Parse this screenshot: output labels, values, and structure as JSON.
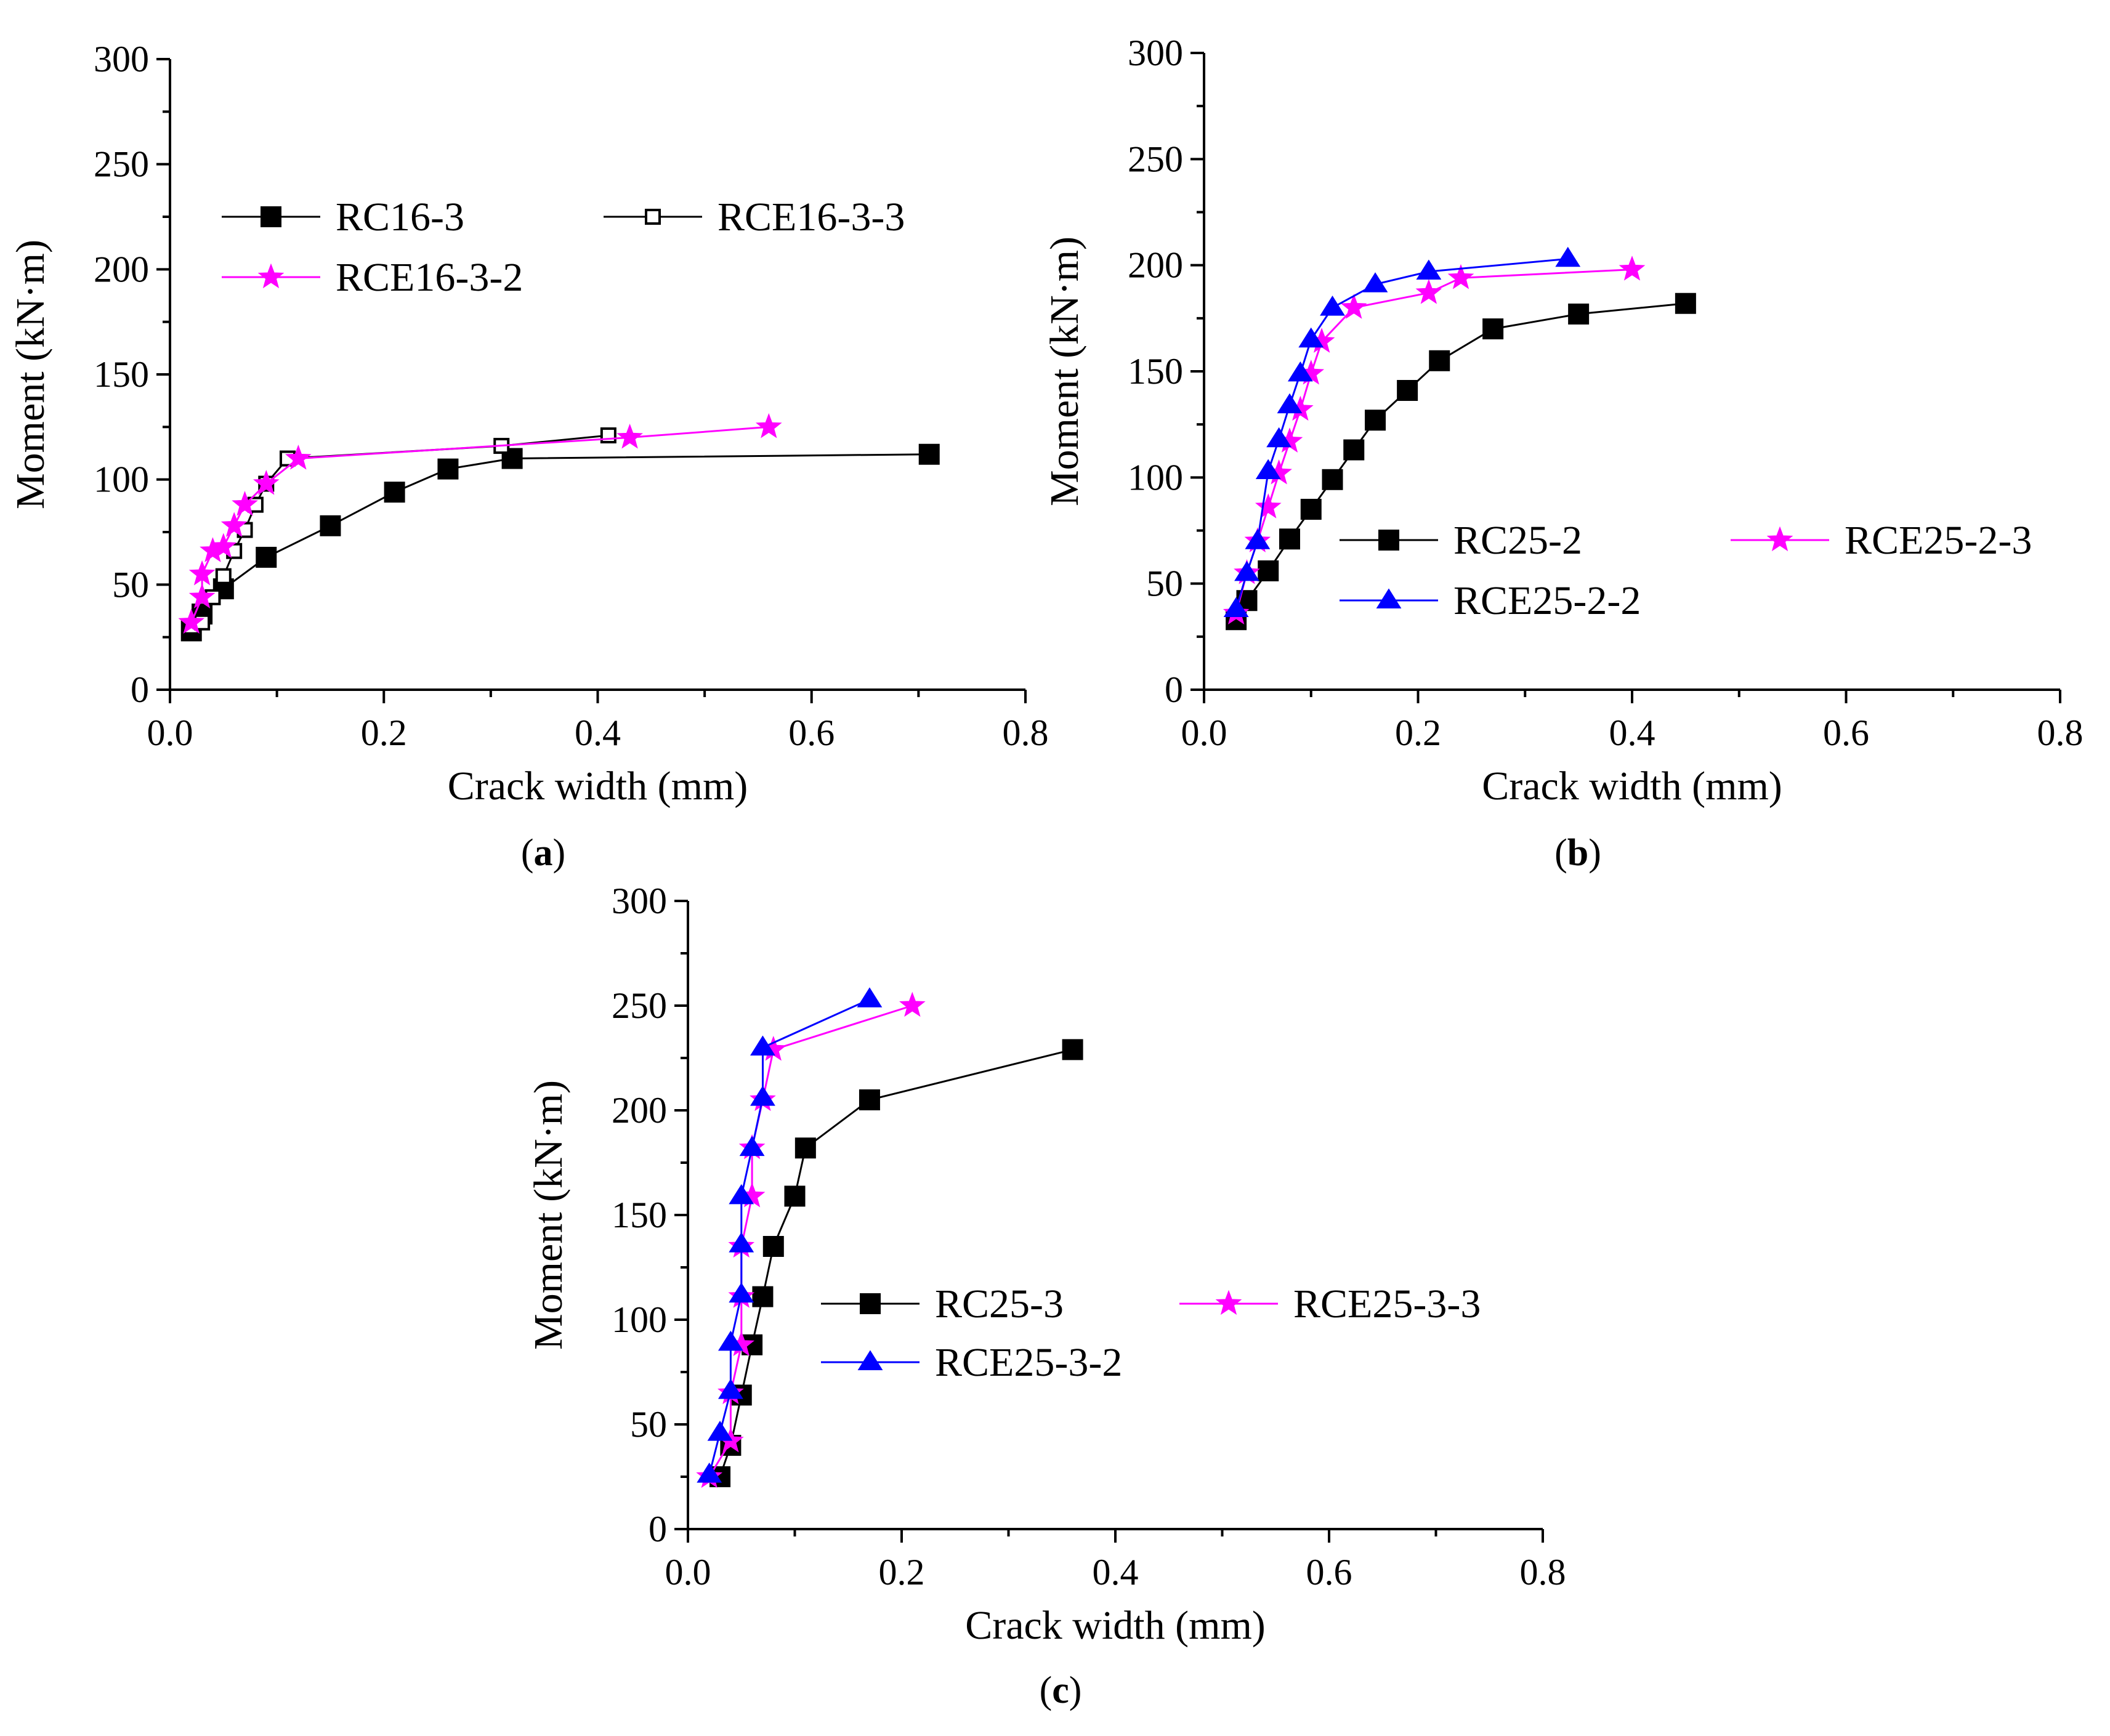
{
  "figure": {
    "background": "#ffffff"
  },
  "chart_data": [
    {
      "type": "line",
      "panel_label": "(a)",
      "panel_letter": "a",
      "xlabel": "Crack width (mm)",
      "ylabel": "Moment (kN·m)",
      "xlim": [
        0.0,
        0.8
      ],
      "ylim": [
        0,
        300
      ],
      "xticks": [
        0.0,
        0.2,
        0.4,
        0.6,
        0.8
      ],
      "yticks": [
        0,
        50,
        100,
        150,
        200,
        250,
        300
      ],
      "xtick_labels": [
        "0.0",
        "0.2",
        "0.4",
        "0.6",
        "0.8"
      ],
      "ytick_labels": [
        "0",
        "50",
        "100",
        "150",
        "200",
        "250",
        "300"
      ],
      "legend": "top-left",
      "series": [
        {
          "name": "RC16-3",
          "color": "#000000",
          "marker": "square-filled",
          "x": [
            0.02,
            0.03,
            0.05,
            0.09,
            0.15,
            0.21,
            0.26,
            0.32,
            0.71
          ],
          "y": [
            28,
            36,
            48,
            63,
            78,
            94,
            105,
            110,
            112
          ]
        },
        {
          "name": "RCE16-3-3",
          "color": "#000000",
          "marker": "square-open",
          "x": [
            0.02,
            0.03,
            0.04,
            0.05,
            0.06,
            0.07,
            0.08,
            0.09,
            0.11,
            0.31,
            0.41
          ],
          "y": [
            30,
            32,
            44,
            54,
            66,
            76,
            88,
            98,
            110,
            116,
            121
          ]
        },
        {
          "name": "RCE16-3-2",
          "color": "#ff00ff",
          "marker": "star",
          "x": [
            0.02,
            0.03,
            0.03,
            0.04,
            0.05,
            0.06,
            0.07,
            0.09,
            0.12,
            0.43,
            0.56
          ],
          "y": [
            32,
            44,
            55,
            66,
            68,
            78,
            88,
            98,
            110,
            120,
            125
          ]
        }
      ]
    },
    {
      "type": "line",
      "panel_label": "(b)",
      "panel_letter": "b",
      "xlabel": "Crack width (mm)",
      "ylabel": "Moment (kN·m)",
      "xlim": [
        0.0,
        0.8
      ],
      "ylim": [
        0,
        300
      ],
      "xticks": [
        0.0,
        0.2,
        0.4,
        0.6,
        0.8
      ],
      "yticks": [
        0,
        50,
        100,
        150,
        200,
        250,
        300
      ],
      "xtick_labels": [
        "0.0",
        "0.2",
        "0.4",
        "0.6",
        "0.8"
      ],
      "ytick_labels": [
        "0",
        "50",
        "100",
        "150",
        "200",
        "250",
        "300"
      ],
      "legend": "center-right",
      "series": [
        {
          "name": "RC25-2",
          "color": "#000000",
          "marker": "square-filled",
          "x": [
            0.03,
            0.04,
            0.06,
            0.08,
            0.1,
            0.12,
            0.14,
            0.16,
            0.19,
            0.22,
            0.27,
            0.35,
            0.45
          ],
          "y": [
            33,
            42,
            56,
            71,
            85,
            99,
            113,
            127,
            141,
            155,
            170,
            177,
            182
          ]
        },
        {
          "name": "RCE25-2-3",
          "color": "#ff00ff",
          "marker": "star",
          "x": [
            0.03,
            0.04,
            0.05,
            0.06,
            0.07,
            0.08,
            0.09,
            0.1,
            0.11,
            0.14,
            0.21,
            0.24,
            0.4
          ],
          "y": [
            36,
            55,
            70,
            86,
            102,
            117,
            132,
            149,
            164,
            180,
            187,
            194,
            198
          ]
        },
        {
          "name": "RCE25-2-2",
          "color": "#0000ff",
          "marker": "triangle",
          "x": [
            0.03,
            0.04,
            0.05,
            0.06,
            0.07,
            0.08,
            0.09,
            0.1,
            0.12,
            0.16,
            0.21,
            0.34
          ],
          "y": [
            38,
            55,
            70,
            103,
            118,
            134,
            149,
            165,
            180,
            191,
            197,
            203
          ]
        }
      ]
    },
    {
      "type": "line",
      "panel_label": "(c)",
      "panel_letter": "c",
      "xlabel": "Crack width (mm)",
      "ylabel": "Moment (kN·m)",
      "xlim": [
        0.0,
        0.8
      ],
      "ylim": [
        0,
        300
      ],
      "xticks": [
        0.0,
        0.2,
        0.4,
        0.6,
        0.8
      ],
      "yticks": [
        0,
        50,
        100,
        150,
        200,
        250,
        300
      ],
      "xtick_labels": [
        "0.0",
        "0.2",
        "0.4",
        "0.6",
        "0.8"
      ],
      "ytick_labels": [
        "0",
        "50",
        "100",
        "150",
        "200",
        "250",
        "300"
      ],
      "legend": "center-right",
      "series": [
        {
          "name": "RC25-3",
          "color": "#000000",
          "marker": "square-filled",
          "x": [
            0.03,
            0.04,
            0.05,
            0.06,
            0.07,
            0.08,
            0.1,
            0.11,
            0.17,
            0.36
          ],
          "y": [
            25,
            40,
            64,
            88,
            111,
            135,
            159,
            182,
            205,
            229
          ]
        },
        {
          "name": "RCE25-3-3",
          "color": "#ff00ff",
          "marker": "star",
          "x": [
            0.02,
            0.04,
            0.04,
            0.05,
            0.05,
            0.05,
            0.06,
            0.06,
            0.07,
            0.08,
            0.21
          ],
          "y": [
            25,
            42,
            65,
            88,
            111,
            135,
            159,
            182,
            205,
            229,
            250
          ]
        },
        {
          "name": "RCE25-3-2",
          "color": "#0000ff",
          "marker": "triangle",
          "x": [
            0.02,
            0.03,
            0.04,
            0.04,
            0.05,
            0.05,
            0.05,
            0.06,
            0.07,
            0.07,
            0.17
          ],
          "y": [
            26,
            46,
            66,
            89,
            112,
            136,
            159,
            182,
            206,
            230,
            253
          ]
        }
      ]
    }
  ]
}
